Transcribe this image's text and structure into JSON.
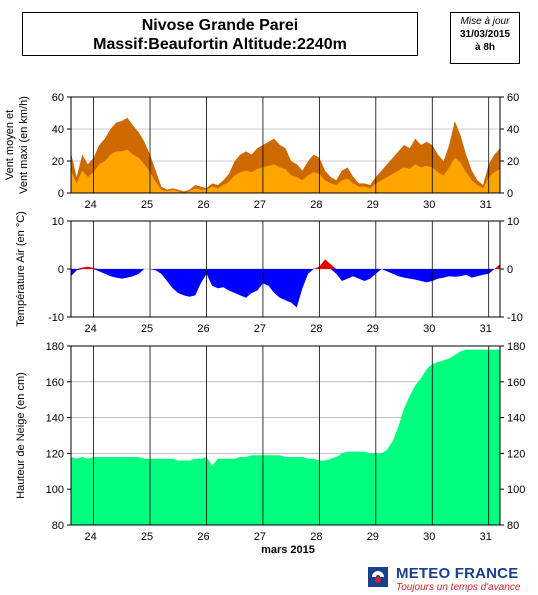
{
  "header": {
    "title_line1": "Nivose Grande Parei",
    "title_line2": "Massif:Beaufortin Altitude:2240m",
    "update_label": "Mise à jour",
    "update_date": "31/03/2015",
    "update_time": "à 8h"
  },
  "logo": {
    "name": "METEO FRANCE",
    "tagline": "Toujours un temps d'avance"
  },
  "chart_data": [
    {
      "type": "area",
      "ylabel": "Vent moyen et Vent maxi (en km/h)",
      "ylim": [
        0,
        60
      ],
      "yticks": [
        0,
        20,
        40,
        60
      ],
      "xlim": [
        23.6,
        31.2
      ],
      "xticks": [
        24,
        25,
        26,
        27,
        28,
        29,
        30,
        31
      ],
      "grid": true,
      "series": [
        {
          "color": "#cc6a00",
          "x": [
            23.6,
            23.7,
            23.8,
            23.9,
            24.0,
            24.1,
            24.2,
            24.3,
            24.4,
            24.5,
            24.6,
            24.7,
            24.8,
            24.9,
            25.0,
            25.1,
            25.2,
            25.3,
            25.4,
            25.5,
            25.6,
            25.7,
            25.8,
            25.9,
            26.0,
            26.1,
            26.2,
            26.3,
            26.4,
            26.5,
            26.6,
            26.7,
            26.8,
            26.9,
            27.0,
            27.1,
            27.2,
            27.3,
            27.4,
            27.5,
            27.6,
            27.7,
            27.8,
            27.9,
            28.0,
            28.1,
            28.2,
            28.3,
            28.4,
            28.5,
            28.6,
            28.7,
            28.8,
            28.9,
            29.0,
            29.1,
            29.2,
            29.3,
            29.4,
            29.5,
            29.6,
            29.7,
            29.8,
            29.9,
            30.0,
            30.1,
            30.2,
            30.3,
            30.4,
            30.5,
            30.6,
            30.7,
            30.8,
            30.9,
            31.0,
            31.1,
            31.2
          ],
          "values": [
            25,
            10,
            24,
            18,
            22,
            30,
            34,
            40,
            44,
            45,
            47,
            42,
            38,
            32,
            24,
            14,
            4,
            2,
            3,
            2,
            1,
            2,
            5,
            4,
            3,
            6,
            5,
            8,
            12,
            20,
            24,
            26,
            24,
            28,
            30,
            32,
            34,
            30,
            28,
            20,
            18,
            14,
            20,
            24,
            22,
            14,
            10,
            8,
            14,
            16,
            10,
            6,
            6,
            5,
            10,
            14,
            18,
            22,
            26,
            30,
            28,
            34,
            30,
            32,
            30,
            24,
            20,
            30,
            45,
            36,
            24,
            14,
            8,
            5,
            18,
            24,
            28
          ]
        },
        {
          "color": "#ffa500",
          "x": [
            23.6,
            23.7,
            23.8,
            23.9,
            24.0,
            24.1,
            24.2,
            24.3,
            24.4,
            24.5,
            24.6,
            24.7,
            24.8,
            24.9,
            25.0,
            25.1,
            25.2,
            25.3,
            25.4,
            25.5,
            25.6,
            25.7,
            25.8,
            25.9,
            26.0,
            26.1,
            26.2,
            26.3,
            26.4,
            26.5,
            26.6,
            26.7,
            26.8,
            26.9,
            27.0,
            27.1,
            27.2,
            27.3,
            27.4,
            27.5,
            27.6,
            27.7,
            27.8,
            27.9,
            28.0,
            28.1,
            28.2,
            28.3,
            28.4,
            28.5,
            28.6,
            28.7,
            28.8,
            28.9,
            29.0,
            29.1,
            29.2,
            29.3,
            29.4,
            29.5,
            29.6,
            29.7,
            29.8,
            29.9,
            30.0,
            30.1,
            30.2,
            30.3,
            30.4,
            30.5,
            30.6,
            30.7,
            30.8,
            30.9,
            31.0,
            31.1,
            31.2
          ],
          "values": [
            14,
            6,
            14,
            10,
            13,
            18,
            20,
            24,
            26,
            26,
            27,
            24,
            22,
            18,
            13,
            7,
            2,
            1,
            2,
            1,
            0,
            1,
            3,
            2,
            2,
            4,
            3,
            5,
            7,
            11,
            13,
            14,
            13,
            15,
            16,
            17,
            18,
            16,
            15,
            11,
            10,
            8,
            11,
            13,
            12,
            8,
            6,
            5,
            8,
            9,
            6,
            4,
            4,
            3,
            6,
            8,
            10,
            12,
            14,
            16,
            15,
            18,
            16,
            17,
            16,
            13,
            11,
            16,
            22,
            19,
            13,
            8,
            5,
            3,
            10,
            13,
            15
          ]
        }
      ]
    },
    {
      "type": "area",
      "ylabel": "Température Air (en °C)",
      "ylim": [
        -10,
        10
      ],
      "yticks": [
        -10,
        0,
        10
      ],
      "xlim": [
        23.6,
        31.2
      ],
      "xticks": [
        24,
        25,
        26,
        27,
        28,
        29,
        30,
        31
      ],
      "grid": true,
      "positive_color": "#e00000",
      "negative_color": "#0000ff",
      "x": [
        23.6,
        23.7,
        23.8,
        23.9,
        24.0,
        24.1,
        24.2,
        24.3,
        24.4,
        24.5,
        24.6,
        24.7,
        24.8,
        24.9,
        25.0,
        25.1,
        25.2,
        25.3,
        25.4,
        25.5,
        25.6,
        25.7,
        25.8,
        25.9,
        26.0,
        26.1,
        26.2,
        26.3,
        26.4,
        26.5,
        26.6,
        26.7,
        26.8,
        26.9,
        27.0,
        27.1,
        27.2,
        27.3,
        27.4,
        27.5,
        27.6,
        27.7,
        27.8,
        27.9,
        28.0,
        28.1,
        28.2,
        28.3,
        28.4,
        28.5,
        28.6,
        28.7,
        28.8,
        28.9,
        29.0,
        29.1,
        29.2,
        29.3,
        29.4,
        29.5,
        29.6,
        29.7,
        29.8,
        29.9,
        30.0,
        30.1,
        30.2,
        30.3,
        30.4,
        30.5,
        30.6,
        30.7,
        30.8,
        30.9,
        31.0,
        31.1,
        31.2
      ],
      "values": [
        -1.5,
        -0.3,
        0.3,
        0.5,
        0.2,
        -0.5,
        -1.0,
        -1.5,
        -1.8,
        -2.0,
        -1.8,
        -1.5,
        -1.0,
        0.0,
        0.0,
        -0.3,
        -1.0,
        -2.5,
        -4.0,
        -5.0,
        -5.5,
        -5.8,
        -5.5,
        -3.0,
        -1.0,
        -3.5,
        -4.0,
        -3.8,
        -4.5,
        -5.0,
        -5.5,
        -6.0,
        -5.0,
        -4.5,
        -3.0,
        -3.5,
        -5.0,
        -6.0,
        -6.5,
        -7.0,
        -8.0,
        -4.0,
        -1.0,
        0.0,
        0.5,
        2.0,
        1.0,
        -1.0,
        -2.5,
        -2.0,
        -1.5,
        -2.0,
        -2.5,
        -2.0,
        -1.0,
        0.0,
        -0.5,
        -1.0,
        -1.5,
        -1.8,
        -2.0,
        -2.2,
        -2.5,
        -2.8,
        -2.5,
        -2.0,
        -1.8,
        -1.5,
        -1.6,
        -1.5,
        -1.2,
        -1.8,
        -1.5,
        -1.2,
        -1.0,
        0.0,
        1.0
      ]
    },
    {
      "type": "area",
      "ylabel": "Hauteur de Neige (en cm)",
      "xlabel": "mars 2015",
      "ylim": [
        80,
        180
      ],
      "yticks": [
        80,
        100,
        120,
        140,
        160,
        180
      ],
      "xlim": [
        23.6,
        31.2
      ],
      "xticks": [
        24,
        25,
        26,
        27,
        28,
        29,
        30,
        31
      ],
      "grid": true,
      "color": "#00ff7f",
      "x": [
        23.6,
        23.7,
        23.8,
        23.9,
        24.0,
        24.1,
        24.2,
        24.3,
        24.4,
        24.5,
        24.6,
        24.7,
        24.8,
        24.9,
        25.0,
        25.1,
        25.2,
        25.3,
        25.4,
        25.5,
        25.6,
        25.7,
        25.8,
        25.9,
        26.0,
        26.1,
        26.2,
        26.3,
        26.4,
        26.5,
        26.6,
        26.7,
        26.8,
        26.9,
        27.0,
        27.1,
        27.2,
        27.3,
        27.4,
        27.5,
        27.6,
        27.7,
        27.8,
        27.9,
        28.0,
        28.1,
        28.2,
        28.3,
        28.4,
        28.5,
        28.6,
        28.7,
        28.8,
        28.9,
        29.0,
        29.1,
        29.2,
        29.3,
        29.4,
        29.5,
        29.6,
        29.7,
        29.8,
        29.9,
        30.0,
        30.1,
        30.2,
        30.3,
        30.4,
        30.5,
        30.6,
        30.7,
        30.8,
        30.9,
        31.0,
        31.1,
        31.2
      ],
      "values": [
        118,
        117,
        118,
        117,
        118,
        118,
        118,
        118,
        118,
        118,
        118,
        118,
        118,
        117,
        117,
        117,
        117,
        117,
        117,
        116,
        116,
        116,
        117,
        117,
        118,
        113,
        117,
        117,
        117,
        117,
        118,
        118,
        119,
        119,
        119,
        119,
        119,
        119,
        118,
        118,
        118,
        118,
        117,
        117,
        116,
        116,
        117,
        118,
        120,
        121,
        121,
        121,
        121,
        120,
        120,
        120,
        122,
        127,
        135,
        145,
        152,
        158,
        162,
        167,
        170,
        171,
        172,
        173,
        175,
        177,
        178,
        178,
        178,
        178,
        178,
        178,
        178
      ]
    }
  ]
}
